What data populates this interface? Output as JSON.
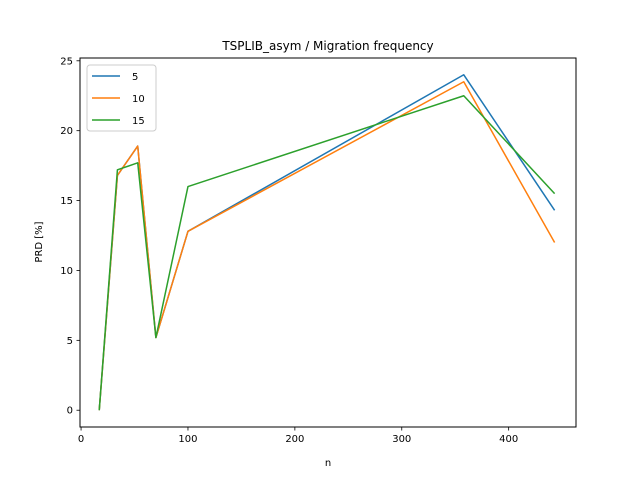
{
  "chart_data": {
    "type": "line",
    "title": "TSPLIB_asym / Migration frequency",
    "xlabel": "n",
    "ylabel": "PRD [%]",
    "xlim": [
      -1,
      463
    ],
    "ylim": [
      -1.2,
      25.2
    ],
    "xticks": [
      0,
      100,
      200,
      300,
      400
    ],
    "yticks": [
      0,
      5,
      10,
      15,
      20,
      25
    ],
    "grid": false,
    "legend_position": "top-left",
    "x": [
      17,
      34,
      53,
      70,
      100,
      358,
      443
    ],
    "series": [
      {
        "name": "5",
        "color": "#1f77b4",
        "values": [
          0,
          16.8,
          18.9,
          5.2,
          12.8,
          24.0,
          14.3
        ]
      },
      {
        "name": "10",
        "color": "#ff7f0e",
        "values": [
          0,
          16.8,
          18.9,
          5.2,
          12.8,
          23.5,
          12.0
        ]
      },
      {
        "name": "15",
        "color": "#2ca02c",
        "values": [
          0,
          17.2,
          17.7,
          5.2,
          16.0,
          22.5,
          15.5
        ]
      }
    ]
  }
}
